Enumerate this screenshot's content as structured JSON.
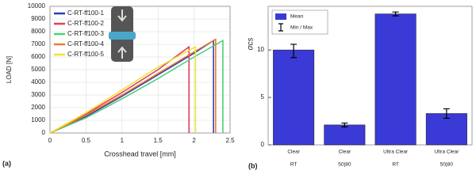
{
  "chart_data": [
    {
      "type": "line",
      "panel_label": "(a)",
      "xlabel": "Crosshead travel [mm]",
      "ylabel": "LOAD [N]",
      "xlim": [
        0,
        2.5
      ],
      "xticks": [
        0,
        0.5,
        1,
        1.5,
        2,
        2.5
      ],
      "ylim": [
        0,
        10000
      ],
      "yticks": [
        0,
        1000,
        2000,
        3000,
        4000,
        5000,
        6000,
        7000,
        8000,
        9000,
        10000
      ],
      "grid": true,
      "legend": "upper left",
      "series": [
        {
          "name": "C-RT-ff100-1",
          "color": "#2b3fbf",
          "x": [
            0,
            0.5,
            1,
            1.5,
            2,
            2.27,
            2.27
          ],
          "values": [
            0,
            1300,
            2900,
            4600,
            6300,
            7300,
            0
          ]
        },
        {
          "name": "C-RT-ff100-2",
          "color": "#e0405a",
          "x": [
            0,
            0.5,
            1,
            1.5,
            1.93,
            1.93
          ],
          "values": [
            0,
            1500,
            3200,
            5000,
            6800,
            0
          ]
        },
        {
          "name": "C-RT-ff100-3",
          "color": "#4fcf7a",
          "x": [
            0,
            0.5,
            1,
            1.5,
            2,
            2.4,
            2.4
          ],
          "values": [
            0,
            1200,
            2700,
            4300,
            6000,
            7300,
            0
          ]
        },
        {
          "name": "C-RT-ff100-4",
          "color": "#f07a2a",
          "x": [
            0,
            0.5,
            1,
            1.5,
            2,
            2.3,
            2.3
          ],
          "values": [
            0,
            1400,
            3000,
            4700,
            6400,
            7400,
            0
          ]
        },
        {
          "name": "C-RT-ff100-5",
          "color": "#f2e23a",
          "x": [
            0,
            0.5,
            1,
            1.5,
            2.02,
            2.02
          ],
          "values": [
            0,
            1600,
            3400,
            5200,
            6800,
            0
          ]
        }
      ]
    },
    {
      "type": "bar",
      "panel_label": "(b)",
      "ylabel": "σcs",
      "categories": [
        "Clear",
        "Clear",
        "Ultra Clear",
        "Ultra Clear"
      ],
      "subcategories": [
        "RT",
        "50|80",
        "RT",
        "50|80"
      ],
      "ylim": [
        0,
        14.6
      ],
      "yticks": [
        0,
        5,
        10
      ],
      "series": [
        {
          "name": "Mean",
          "color": "#3a3ad6",
          "values": [
            10,
            2.1,
            13.8,
            3.3
          ]
        }
      ],
      "error_name": "Min / Max",
      "low": [
        9.2,
        1.9,
        13.6,
        2.8
      ],
      "high": [
        10.6,
        2.3,
        14.0,
        3.8
      ]
    }
  ]
}
